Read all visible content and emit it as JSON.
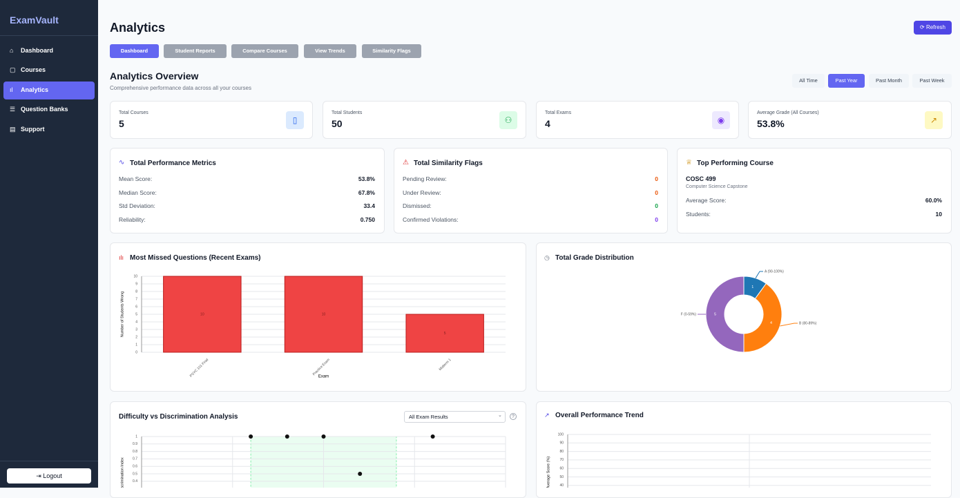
{
  "sidebar": {
    "brand": "ExamVault",
    "nav": [
      "Dashboard",
      "Courses",
      "Analytics",
      "Question Banks",
      "Support"
    ],
    "logout": "Logout"
  },
  "header": {
    "title": "Analytics",
    "refresh": "Refresh"
  },
  "tabs": [
    "Dashboard",
    "Student Reports",
    "Compare Courses",
    "View Trends",
    "Similarity Flags"
  ],
  "overview": {
    "title": "Analytics Overview",
    "subtitle": "Comprehensive performance data across all your courses",
    "periods": [
      "All Time",
      "Past Year",
      "Past Month",
      "Past Week"
    ]
  },
  "stats": [
    {
      "label": "Total Courses",
      "value": "5"
    },
    {
      "label": "Total Students",
      "value": "50"
    },
    {
      "label": "Total Exams",
      "value": "4"
    },
    {
      "label": "Average Grade (All Courses)",
      "value": "53.8%"
    }
  ],
  "metrics": {
    "title": "Total Performance Metrics",
    "rows": [
      [
        "Mean Score:",
        "53.8%"
      ],
      [
        "Median Score:",
        "67.8%"
      ],
      [
        "Std Deviation:",
        "33.4"
      ],
      [
        "Reliability:",
        "0.750"
      ]
    ]
  },
  "flags": {
    "title": "Total Similarity Flags",
    "rows": [
      [
        "Pending Review:",
        "0"
      ],
      [
        "Under Review:",
        "0"
      ],
      [
        "Dismissed:",
        "0"
      ],
      [
        "Confirmed Violations:",
        "0"
      ]
    ]
  },
  "top_course": {
    "title": "Top Performing Course",
    "code": "COSC 499",
    "name": "Computer Science Capstone",
    "rows": [
      [
        "Average Score:",
        "60.0%"
      ],
      [
        "Students:",
        "10"
      ]
    ]
  },
  "chart_data": [
    {
      "type": "bar",
      "title": "Most Missed Questions (Recent Exams)",
      "x_label": "Exam",
      "y_label": "Number of Students Wrong",
      "categories": [
        "PSYC 101 Final",
        "Practice Exam",
        "Midterm 1"
      ],
      "values": [
        10,
        10,
        5
      ],
      "color": "#ef4444",
      "ylim": [
        0,
        10
      ],
      "yticks": [
        0,
        1,
        2,
        3,
        4,
        5,
        6,
        7,
        8,
        9,
        10
      ],
      "grid": true
    },
    {
      "type": "donut",
      "title": "Total Grade Distribution",
      "categories": [
        "A (90-100%)",
        "B (80-89%)",
        "F (0-59%)"
      ],
      "values": [
        1,
        4,
        5
      ],
      "colors": [
        "#1f77b4",
        "#ff7f0e",
        "#9467bd"
      ]
    },
    {
      "type": "scatter",
      "title": "Difficulty vs Discrimination Analysis",
      "filter": "All Exam Results",
      "y_label": "Discrimination Index",
      "x": [
        0.3,
        0.4,
        0.5,
        0.6,
        0.8
      ],
      "y": [
        1,
        1,
        1,
        0.5,
        1
      ],
      "xlim": [
        0,
        1
      ],
      "ylim": [
        0,
        1
      ],
      "xticks": [
        0.25,
        0.5,
        0.75,
        1
      ],
      "yticks": [
        0,
        0.1,
        0.2,
        0.3,
        0.4,
        0.5,
        0.6,
        0.7,
        0.8,
        0.9,
        1
      ],
      "highlight_x": [
        0.3,
        0.7
      ],
      "color": "#111111",
      "grid": true
    },
    {
      "type": "line",
      "title": "Overall Performance Trend",
      "y_label": "Average Score (%)",
      "ylim": [
        0,
        100
      ],
      "yticks": [
        0,
        10,
        20,
        30,
        40,
        50,
        60,
        70,
        80,
        90,
        100
      ],
      "grid": true
    }
  ]
}
